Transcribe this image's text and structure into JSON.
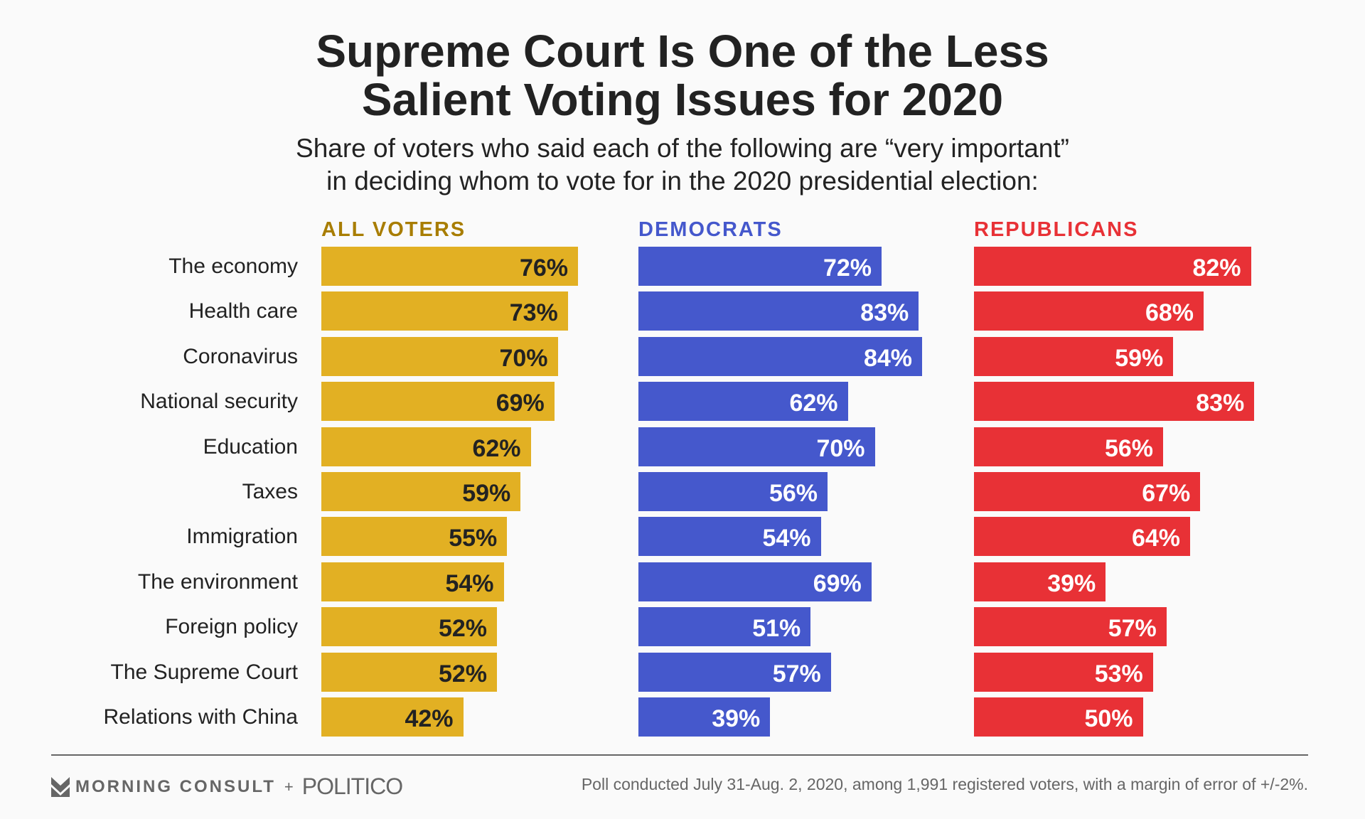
{
  "chart_data": {
    "type": "bar",
    "title_lines": [
      "Supreme Court Is One of the Less",
      "Salient Voting Issues for 2020"
    ],
    "subtitle_lines": [
      "Share of voters who said each of the following are “very important”",
      "in deciding whom to vote for in the 2020 presidential election:"
    ],
    "categories": [
      "The economy",
      "Health care",
      "Coronavirus",
      "National security",
      "Education",
      "Taxes",
      "Immigration",
      "The environment",
      "Foreign policy",
      "The Supreme Court",
      "Relations with China"
    ],
    "series": [
      {
        "name": "ALL VOTERS",
        "color": "#e2b023",
        "header_color": "#a87d00",
        "text_color": "#222222",
        "values": [
          76,
          73,
          70,
          69,
          62,
          59,
          55,
          54,
          52,
          52,
          42
        ]
      },
      {
        "name": "DEMOCRATS",
        "color": "#4558cc",
        "header_color": "#4558cc",
        "text_color": "#ffffff",
        "values": [
          72,
          83,
          84,
          62,
          70,
          56,
          54,
          69,
          51,
          57,
          39
        ]
      },
      {
        "name": "REPUBLICANS",
        "color": "#e83136",
        "header_color": "#e83136",
        "text_color": "#ffffff",
        "values": [
          82,
          68,
          59,
          83,
          56,
          67,
          64,
          39,
          57,
          53,
          50
        ]
      }
    ],
    "value_suffix": "%",
    "xlim": [
      0,
      100
    ]
  },
  "footer": {
    "logo_morning_consult": "MORNING CONSULT",
    "plus": "+",
    "logo_politico": "POLITICO",
    "note": "Poll conducted July 31-Aug. 2, 2020, among 1,991 registered voters, with a margin of error of +/-2%."
  }
}
